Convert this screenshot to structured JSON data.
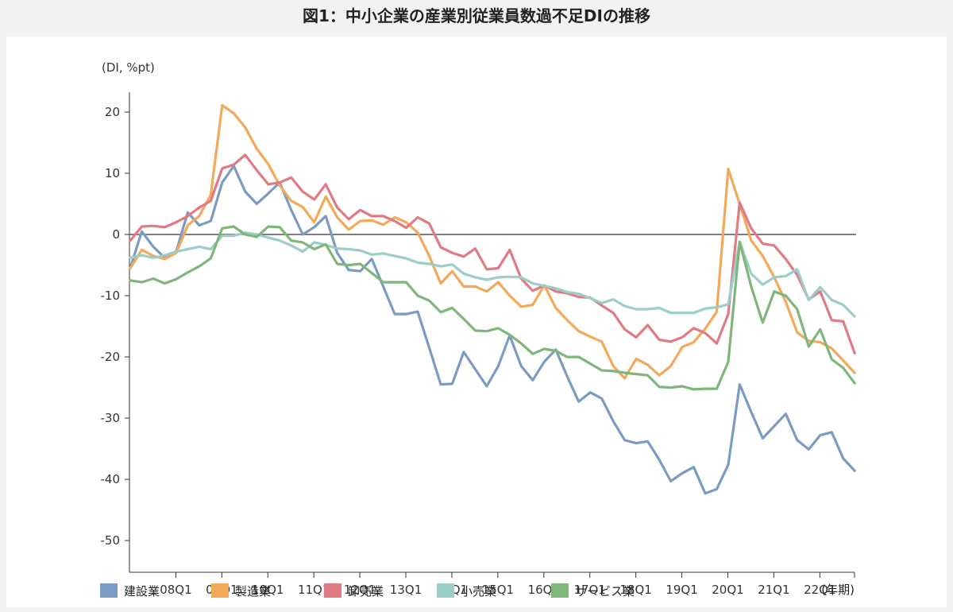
{
  "title": "図1：中小企業の産業別従業員数過不足DIの推移",
  "chart_data": {
    "type": "line",
    "ylabel": "(DI, %pt)",
    "xlabel": "(年期)",
    "ylim": [
      -55,
      25
    ],
    "yticks": [
      20,
      10,
      0,
      -10,
      -20,
      -30,
      -40,
      -50
    ],
    "x_start": "2007Q1",
    "x_end": "2022Q4",
    "tick_labels": [
      "08Q1",
      "09Q1",
      "10Q1",
      "11Q1",
      "12Q1",
      "13Q1",
      "14Q1",
      "15Q1",
      "16Q1",
      "17Q1",
      "18Q1",
      "19Q1",
      "20Q1",
      "21Q1",
      "22Q1"
    ],
    "colors": {
      "建設業": "#7b9cc2",
      "製造業": "#f3a95a",
      "卸売業": "#e07a84",
      "小売業": "#9ccdc8",
      "サービス業": "#7fb77a"
    },
    "series": [
      {
        "name": "建設業",
        "values": [
          -5.5,
          0.5,
          -2,
          -3.8,
          -2.8,
          3.6,
          1.5,
          2.2,
          8.5,
          11.2,
          7,
          5,
          6.7,
          8.5,
          4,
          0,
          1.2,
          3,
          -3,
          -5.8,
          -6,
          -4,
          -8.5,
          -13,
          -13,
          -12.6,
          -18.5,
          -24.5,
          -24.4,
          -19.2,
          -22,
          -24.8,
          -21.5,
          -16.5,
          -21.5,
          -23.8,
          -20.8,
          -18.8,
          -23.2,
          -27.3,
          -25.8,
          -26.8,
          -30.5,
          -33.6,
          -34.1,
          -33.8,
          -36.8,
          -40.3,
          -39,
          -38,
          -42.3,
          -41.6,
          -37.6,
          -24.5,
          -29,
          -33.3,
          -31.3,
          -29.3,
          -33.6,
          -35.1,
          -32.8,
          -32.3,
          -36.6,
          -38.6
        ]
      },
      {
        "name": "製造業",
        "values": [
          -5.5,
          -2.5,
          -3.5,
          -4,
          -3,
          1.5,
          3,
          6.5,
          21.1,
          19.8,
          17.5,
          14,
          11.5,
          8,
          5.5,
          4.5,
          2,
          6.2,
          2.8,
          0.8,
          2.2,
          2.3,
          1.6,
          2.8,
          2,
          0.3,
          -3.5,
          -8,
          -6,
          -8.5,
          -8.5,
          -9.3,
          -7.8,
          -10,
          -11.8,
          -11.5,
          -8.3,
          -12,
          -14,
          -15.8,
          -16.7,
          -17.5,
          -21.5,
          -23.5,
          -20.3,
          -21.3,
          -23,
          -21.5,
          -18.4,
          -17.6,
          -15.4,
          -12.6,
          10.7,
          5,
          -1,
          -3.5,
          -7,
          -11,
          -16,
          -17.4,
          -17.6,
          -18.6,
          -20.6,
          -22.6
        ]
      },
      {
        "name": "卸売業",
        "values": [
          -1,
          1.3,
          1.4,
          1.2,
          2,
          3,
          4.4,
          5.5,
          10.8,
          11.4,
          13,
          10.5,
          8.2,
          8.5,
          9.3,
          7,
          5.7,
          8.2,
          4.4,
          2.5,
          4,
          3,
          3,
          2.2,
          1.1,
          2.8,
          1.8,
          -2.1,
          -3,
          -3.6,
          -2.3,
          -5.7,
          -5.5,
          -2.5,
          -7.2,
          -9.2,
          -8.3,
          -9.3,
          -9.6,
          -10.2,
          -10.3,
          -11.6,
          -12.8,
          -15.5,
          -16.8,
          -14.8,
          -17.2,
          -17.5,
          -16.8,
          -15.3,
          -16.1,
          -17.8,
          -13,
          5.2,
          1,
          -1.5,
          -1.8,
          -4,
          -6.6,
          -10.6,
          -9.3,
          -14,
          -14.2,
          -19.4
        ]
      },
      {
        "name": "小売業",
        "values": [
          -3.8,
          -3.4,
          -3.8,
          -3.4,
          -2.8,
          -2.4,
          -2,
          -2.4,
          -0.2,
          -0.2,
          0.3,
          0,
          -0.5,
          -1,
          -1.8,
          -2.8,
          -1.3,
          -1.7,
          -2.3,
          -2.4,
          -2.6,
          -3.3,
          -3.1,
          -3.5,
          -3.9,
          -4.6,
          -4.8,
          -5.2,
          -4.9,
          -6.4,
          -7,
          -7.4,
          -7,
          -6.9,
          -7,
          -8,
          -8.4,
          -8.8,
          -9.4,
          -9.7,
          -10.4,
          -11.2,
          -10.6,
          -11.7,
          -12.2,
          -12.2,
          -12,
          -12.8,
          -12.8,
          -12.8,
          -12.1,
          -11.9,
          -11.4,
          -1.2,
          -6.4,
          -8.2,
          -7,
          -6.8,
          -5.7,
          -10.7,
          -8.6,
          -10.7,
          -11.5,
          -13.4
        ]
      },
      {
        "name": "サービス業",
        "values": [
          -7.5,
          -7.8,
          -7.2,
          -8,
          -7.3,
          -6.2,
          -5.2,
          -3.9,
          1,
          1.3,
          0,
          -0.4,
          1.3,
          1.2,
          -1,
          -1.3,
          -2.4,
          -1.6,
          -4.8,
          -5,
          -4.8,
          -6.3,
          -7.8,
          -7.8,
          -7.8,
          -10,
          -10.8,
          -12.7,
          -12,
          -13.8,
          -15.7,
          -15.8,
          -15.3,
          -16.4,
          -17.8,
          -19.5,
          -18.7,
          -19,
          -20,
          -20,
          -21.1,
          -22.2,
          -22.3,
          -22.6,
          -22.8,
          -23,
          -24.9,
          -25,
          -24.8,
          -25.3,
          -25.2,
          -25.2,
          -20.8,
          -1.2,
          -8.5,
          -14.4,
          -9.3,
          -10,
          -12.2,
          -18.3,
          -15.5,
          -20.4,
          -21.8,
          -24.3
        ]
      }
    ]
  }
}
